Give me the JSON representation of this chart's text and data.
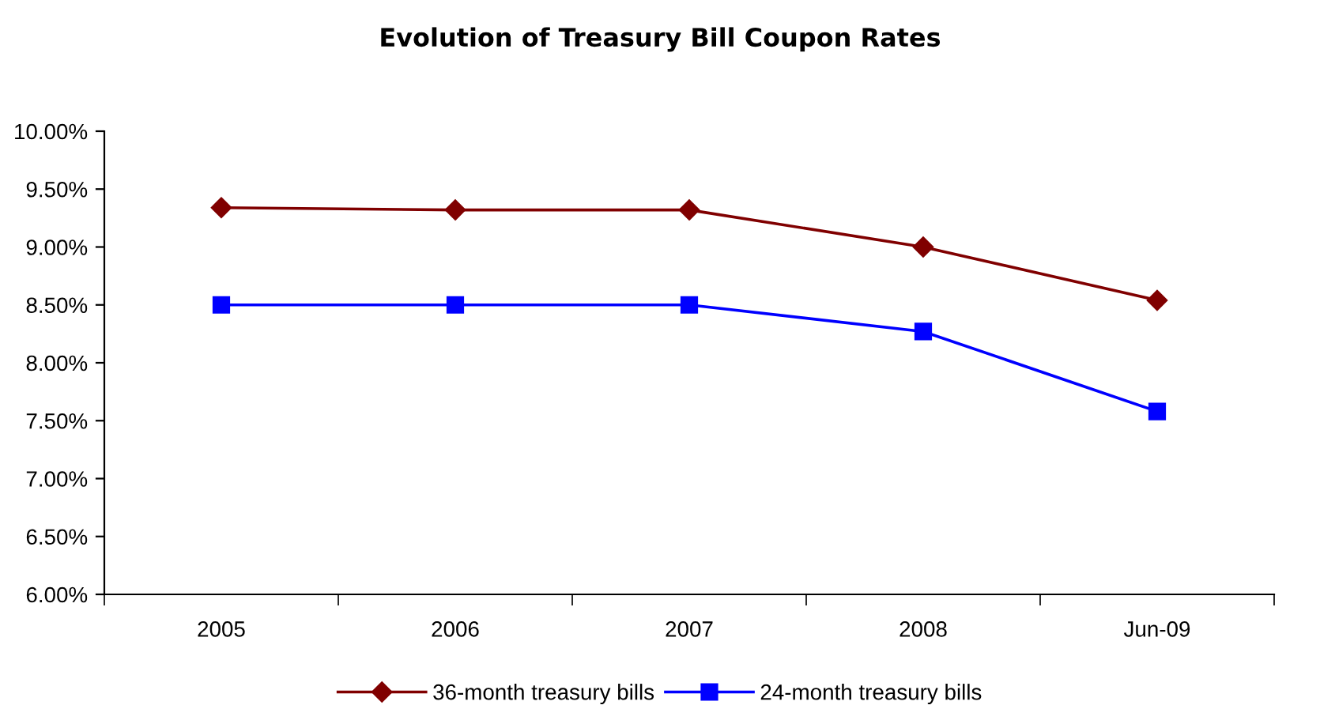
{
  "chart_data": {
    "type": "line",
    "title": "Evolution of Treasury Bill Coupon Rates",
    "categories": [
      "2005",
      "2006",
      "2007",
      "2008",
      "Jun-09"
    ],
    "series": [
      {
        "name": "36-month treasury bills",
        "color": "#800000",
        "marker": "diamond",
        "values": [
          9.34,
          9.32,
          9.32,
          9.0,
          8.54
        ]
      },
      {
        "name": "24-month treasury bills",
        "color": "#0000ff",
        "marker": "square",
        "values": [
          8.5,
          8.5,
          8.5,
          8.27,
          7.58
        ]
      }
    ],
    "ylim": [
      6.0,
      10.0
    ],
    "yticks": [
      {
        "value": 6.0,
        "label": "6.00%"
      },
      {
        "value": 6.5,
        "label": "6.50%"
      },
      {
        "value": 7.0,
        "label": "7.00%"
      },
      {
        "value": 7.5,
        "label": "7.50%"
      },
      {
        "value": 8.0,
        "label": "8.00%"
      },
      {
        "value": 8.5,
        "label": "8.50%"
      },
      {
        "value": 9.0,
        "label": "9.00%"
      },
      {
        "value": 9.5,
        "label": "9.50%"
      },
      {
        "value": 10.0,
        "label": "10.00%"
      }
    ],
    "grid": false,
    "legend": "bottom",
    "line_style": "solid"
  }
}
